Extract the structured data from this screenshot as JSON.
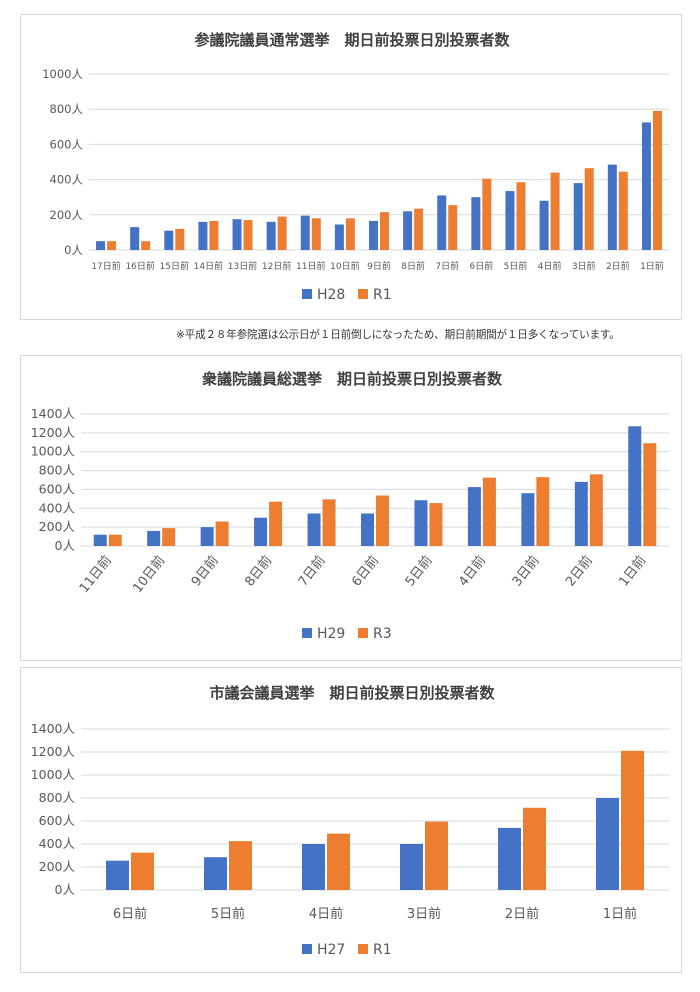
{
  "colors": {
    "series1": "#4472C4",
    "series2": "#ED7D31",
    "grid": "#d9d9d9",
    "text": "#595959",
    "title": "#404040"
  },
  "note": "※平成２８年参院選は公示日が１日前倒しになったため、期日前期間が１日多くなっています。",
  "chart_data": [
    {
      "type": "bar",
      "title": "参議院議員通常選挙　期日前投票日別投票者数",
      "categories": [
        "17日前",
        "16日前",
        "15日前",
        "14日前",
        "13日前",
        "12日前",
        "11日前",
        "10日前",
        "9日前",
        "8日前",
        "7日前",
        "6日前",
        "5日前",
        "4日前",
        "3日前",
        "2日前",
        "1日前"
      ],
      "series": [
        {
          "name": "H28",
          "values": [
            50,
            130,
            110,
            160,
            175,
            160,
            195,
            145,
            165,
            220,
            310,
            300,
            335,
            280,
            380,
            485,
            725
          ]
        },
        {
          "name": "R1",
          "values": [
            50,
            50,
            120,
            165,
            170,
            190,
            180,
            180,
            215,
            235,
            255,
            405,
            385,
            440,
            465,
            445,
            790
          ]
        }
      ],
      "yticks": [
        "0人",
        "200人",
        "400人",
        "600人",
        "800人",
        "1000人"
      ],
      "ylim": [
        0,
        1000
      ],
      "xlabel": "",
      "ylabel": "",
      "x_label_rotation": "horizontal",
      "grid": true,
      "legend": "bottom"
    },
    {
      "type": "bar",
      "title": "衆議院議員総選挙　期日前投票日別投票者数",
      "categories": [
        "11日前",
        "10日前",
        "9日前",
        "8日前",
        "7日前",
        "6日前",
        "5日前",
        "4日前",
        "3日前",
        "2日前",
        "1日前"
      ],
      "series": [
        {
          "name": "H29",
          "values": [
            120,
            160,
            200,
            300,
            345,
            345,
            485,
            625,
            560,
            680,
            1270
          ]
        },
        {
          "name": "R3",
          "values": [
            120,
            190,
            260,
            470,
            495,
            535,
            455,
            725,
            730,
            760,
            1090
          ]
        }
      ],
      "yticks": [
        "0人",
        "200人",
        "400人",
        "600人",
        "800人",
        "1000人",
        "1200人",
        "1400人"
      ],
      "ylim": [
        0,
        1400
      ],
      "xlabel": "",
      "ylabel": "",
      "x_label_rotation": "rotated",
      "grid": true,
      "legend": "bottom"
    },
    {
      "type": "bar",
      "title": "市議会議員選挙　期日前投票日別投票者数",
      "categories": [
        "6日前",
        "5日前",
        "4日前",
        "3日前",
        "2日前",
        "1日前"
      ],
      "series": [
        {
          "name": "H27",
          "values": [
            255,
            285,
            400,
            400,
            540,
            800
          ]
        },
        {
          "name": "R1",
          "values": [
            325,
            425,
            490,
            595,
            715,
            1210
          ]
        }
      ],
      "yticks": [
        "0人",
        "200人",
        "400人",
        "600人",
        "800人",
        "1000人",
        "1200人",
        "1400人"
      ],
      "ylim": [
        0,
        1400
      ],
      "xlabel": "",
      "ylabel": "",
      "x_label_rotation": "horizontal",
      "grid": true,
      "legend": "bottom"
    }
  ]
}
